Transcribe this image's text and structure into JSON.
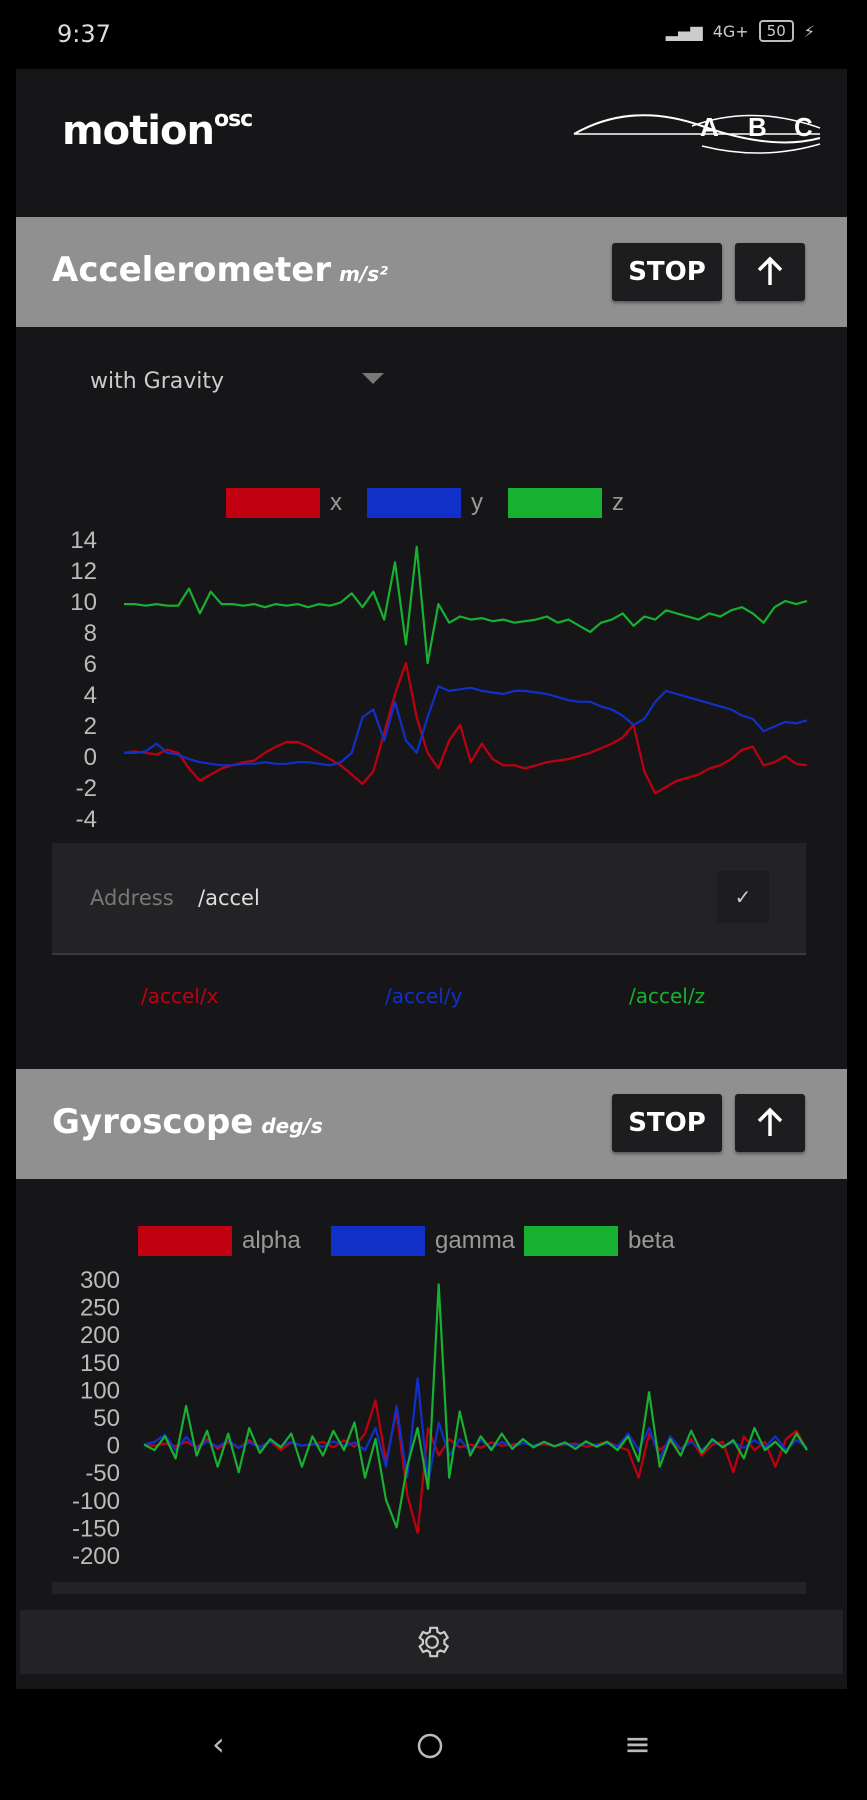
{
  "status_bar": {
    "time": "9:37",
    "network": "4G+",
    "battery": "50"
  },
  "app": {
    "title": "motion",
    "title_sup": "osc",
    "logo_letters": [
      "A",
      "B",
      "C"
    ]
  },
  "accelerometer": {
    "title": "Accelerometer",
    "unit": "m/s²",
    "stop_label": "STOP",
    "select_value": "with Gravity",
    "address_label": "Address",
    "address_value": "/accel",
    "check_mark": "✓",
    "osc_addresses": [
      "/accel/x",
      "/accel/y",
      "/accel/z"
    ],
    "chart": {
      "type": "line",
      "ylim": [
        -4,
        14
      ],
      "y_ticks": [
        "14",
        "12",
        "10",
        "8",
        "6",
        "4",
        "2",
        "0",
        "-2",
        "-4"
      ],
      "legend": [
        "x",
        "y",
        "z"
      ],
      "colors": {
        "x": "#c00010",
        "y": "#1030c8",
        "z": "#18b030"
      }
    }
  },
  "gyroscope": {
    "title": "Gyroscope",
    "unit": "deg/s",
    "stop_label": "STOP",
    "chart": {
      "type": "line",
      "ylim": [
        -200,
        300
      ],
      "y_ticks": [
        "300",
        "250",
        "200",
        "150",
        "100",
        "50",
        "0",
        "-50",
        "-100",
        "-150",
        "-200"
      ],
      "legend": [
        "alpha",
        "gamma",
        "beta"
      ],
      "colors": {
        "alpha": "#c00010",
        "gamma": "#1030c8",
        "beta": "#18b030"
      }
    }
  },
  "chart_data": [
    {
      "type": "line",
      "ylim": [
        -4,
        14
      ],
      "series": [
        {
          "name": "x",
          "values": [
            0.2,
            0.3,
            0.2,
            0.1,
            0.4,
            0.2,
            -0.8,
            -1.6,
            -1.2,
            -0.8,
            -0.6,
            -0.4,
            -0.3,
            0.2,
            0.6,
            0.9,
            0.9,
            0.6,
            0.2,
            -0.2,
            -0.6,
            -1.2,
            -1.8,
            -1.0,
            1.5,
            4.0,
            6.0,
            2.5,
            0.2,
            -0.8,
            1.0,
            2.0,
            -0.4,
            0.8,
            -0.2,
            -0.6,
            -0.6,
            -0.8,
            -0.6,
            -0.4,
            -0.3,
            -0.2,
            0.0,
            0.2,
            0.5,
            0.8,
            1.2,
            2.0,
            -1.0,
            -2.4,
            -2.0,
            -1.6,
            -1.4,
            -1.2,
            -0.8,
            -0.6,
            -0.2,
            0.4,
            0.6,
            -0.6,
            -0.4,
            0.0,
            -0.5,
            -0.6
          ]
        },
        {
          "name": "y",
          "values": [
            0.2,
            0.2,
            0.3,
            0.8,
            0.2,
            0.1,
            -0.2,
            -0.4,
            -0.5,
            -0.6,
            -0.6,
            -0.5,
            -0.5,
            -0.4,
            -0.5,
            -0.5,
            -0.4,
            -0.4,
            -0.5,
            -0.6,
            -0.4,
            0.2,
            2.5,
            3.0,
            1.0,
            3.5,
            1.0,
            0.2,
            2.5,
            4.5,
            4.2,
            4.3,
            4.4,
            4.2,
            4.1,
            4.0,
            4.2,
            4.2,
            4.1,
            4.0,
            3.8,
            3.6,
            3.5,
            3.5,
            3.2,
            3.0,
            2.6,
            2.0,
            2.4,
            3.5,
            4.2,
            4.0,
            3.8,
            3.6,
            3.4,
            3.2,
            3.0,
            2.6,
            2.4,
            1.6,
            1.9,
            2.2,
            2.1,
            2.3
          ]
        },
        {
          "name": "z",
          "values": [
            9.8,
            9.8,
            9.7,
            9.8,
            9.7,
            9.7,
            10.8,
            9.2,
            10.6,
            9.8,
            9.8,
            9.7,
            9.8,
            9.6,
            9.8,
            9.7,
            9.8,
            9.6,
            9.8,
            9.7,
            9.9,
            10.5,
            9.6,
            10.6,
            8.8,
            12.5,
            7.2,
            13.5,
            6.0,
            9.8,
            8.6,
            9.0,
            8.8,
            8.9,
            8.7,
            8.8,
            8.6,
            8.7,
            8.8,
            9.0,
            8.6,
            8.8,
            8.4,
            8.0,
            8.6,
            8.8,
            9.2,
            8.4,
            9.0,
            8.8,
            9.4,
            9.2,
            9.0,
            8.8,
            9.2,
            9.0,
            9.4,
            9.6,
            9.2,
            8.6,
            9.6,
            10.0,
            9.8,
            10.0
          ]
        }
      ]
    },
    {
      "type": "line",
      "ylim": [
        -200,
        300
      ],
      "series": [
        {
          "name": "alpha",
          "values": [
            0,
            -2,
            2,
            -3,
            5,
            -5,
            10,
            -8,
            4,
            -6,
            8,
            -4,
            6,
            -10,
            4,
            -2,
            0,
            5,
            -5,
            8,
            -4,
            20,
            80,
            -30,
            60,
            -90,
            -160,
            30,
            -20,
            10,
            -5,
            0,
            -6,
            4,
            -2,
            0,
            3,
            -2,
            1,
            -3,
            0,
            2,
            -4,
            0,
            5,
            -3,
            -10,
            -60,
            20,
            -10,
            5,
            -8,
            10,
            -20,
            0,
            5,
            -50,
            15,
            -10,
            5,
            -40,
            10,
            25,
            -10
          ]
        },
        {
          "name": "gamma",
          "values": [
            0,
            5,
            18,
            -10,
            14,
            -8,
            6,
            -4,
            8,
            -6,
            4,
            -5,
            6,
            -3,
            5,
            -2,
            2,
            -4,
            6,
            -2,
            4,
            -10,
            30,
            -40,
            70,
            -60,
            120,
            -70,
            40,
            -20,
            10,
            -12,
            8,
            -6,
            5,
            -4,
            3,
            -2,
            4,
            -3,
            2,
            -2,
            3,
            -1,
            2,
            -3,
            20,
            -10,
            30,
            -25,
            15,
            -8,
            5,
            -10,
            6,
            -3,
            4,
            -6,
            8,
            -5,
            15,
            -10,
            8,
            -5
          ]
        },
        {
          "name": "beta",
          "values": [
            0,
            -10,
            15,
            -25,
            70,
            -20,
            25,
            -40,
            20,
            -50,
            30,
            -15,
            10,
            -5,
            20,
            -40,
            15,
            -20,
            25,
            -10,
            40,
            -60,
            10,
            -100,
            -150,
            -40,
            30,
            -80,
            290,
            -60,
            60,
            -20,
            15,
            -10,
            20,
            -8,
            10,
            -5,
            5,
            -3,
            4,
            -8,
            6,
            -4,
            5,
            -10,
            15,
            -30,
            95,
            -40,
            10,
            -20,
            25,
            -15,
            10,
            -5,
            8,
            -25,
            30,
            -10,
            5,
            -15,
            20,
            -10
          ]
        }
      ]
    }
  ]
}
